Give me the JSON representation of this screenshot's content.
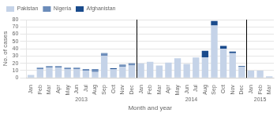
{
  "chart_data": {
    "type": "bar",
    "stacked": true,
    "xlabel": "Month and year",
    "ylabel": "No. of cases",
    "categories": [
      "Jan",
      "Feb",
      "Mar",
      "Apr",
      "May",
      "Jun",
      "Jul",
      "Aug",
      "Sep",
      "Oct",
      "Nov",
      "Dec",
      "Jan",
      "Feb",
      "Mar",
      "Apr",
      "May",
      "Jun",
      "Jul",
      "Aug",
      "Sep",
      "Oct",
      "Nov",
      "Dec",
      "Jan",
      "Feb",
      "Mar"
    ],
    "series": [
      {
        "name": "Pakistan",
        "color": "#c5d3e8",
        "values": [
          4,
          12,
          14,
          14,
          12,
          12,
          10,
          8,
          30,
          12,
          15,
          17,
          20,
          22,
          17,
          21,
          27,
          19,
          28,
          28,
          72,
          40,
          34,
          15,
          10,
          10,
          2
        ]
      },
      {
        "name": "Nigeria",
        "color": "#6b8cba",
        "values": [
          0,
          2,
          2,
          2,
          2,
          2,
          2,
          4,
          3,
          0,
          2,
          2,
          0,
          0,
          0,
          0,
          0,
          0,
          0,
          0,
          0,
          0,
          0,
          0,
          0,
          0,
          0
        ]
      },
      {
        "name": "Afghanistan",
        "color": "#1a4b8c",
        "values": [
          0,
          0,
          0,
          0,
          0,
          0,
          0,
          0,
          1,
          1,
          1,
          1,
          0,
          0,
          0,
          0,
          0,
          0,
          0,
          9,
          6,
          4,
          2,
          1,
          0,
          0,
          0
        ]
      }
    ],
    "ylim": [
      0,
      80
    ],
    "yticks": [
      0,
      10,
      20,
      30,
      40,
      50,
      60,
      70,
      80
    ],
    "grid": "y",
    "legend": "upper left",
    "annotations": [
      {
        "text": "2013",
        "first": 0,
        "last": 11
      },
      {
        "text": "2014",
        "first": 12,
        "last": 23
      },
      {
        "text": "2015",
        "first": 24,
        "last": 26
      }
    ]
  }
}
